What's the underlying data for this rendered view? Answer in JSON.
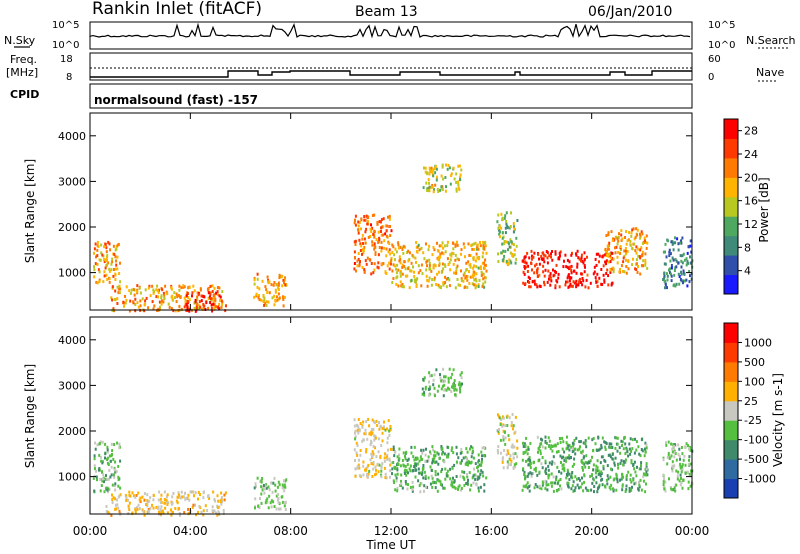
{
  "header": {
    "station": "Rankin Inlet (fitACF)",
    "beam": "Beam 13",
    "date": "06/Jan/2010"
  },
  "noise_panel": {
    "left_label": "N.Sky",
    "right_label": "N.Search",
    "tick_top": "10^5",
    "tick_bottom": "10^0",
    "right_tick_top": "10^5",
    "right_tick_bottom": "10^0"
  },
  "freq_panel": {
    "left_label_line1": "Freq.",
    "left_label_line2": "[MHz]",
    "tick_top": "18",
    "tick_bottom": "8",
    "right_label": "Nave",
    "right_tick_top": "60",
    "right_tick_bottom": "0"
  },
  "cpid_panel": {
    "left_label": "CPID",
    "program": "normalsound (fast) -157"
  },
  "chart_data": [
    {
      "type": "heatmap",
      "title": "",
      "ylabel": "Slant Range [km]",
      "xlabel": "",
      "x_ticks": [
        "00:00",
        "04:00",
        "08:00",
        "12:00",
        "16:00",
        "20:00",
        "00:00"
      ],
      "y_ticks": [
        "1000",
        "2000",
        "3000",
        "4000"
      ],
      "xlim_hours": [
        0,
        24
      ],
      "ylim_km": [
        180,
        4500
      ],
      "colorbar": {
        "label": "Power [dB]",
        "ticks": [
          "4",
          "8",
          "12",
          "16",
          "20",
          "24",
          "28"
        ],
        "range": [
          0,
          30
        ],
        "colors": [
          "#1a1aff",
          "#2f4faa",
          "#3f8a78",
          "#4fa860",
          "#b8c820",
          "#ffb400",
          "#ff7a00",
          "#ff3a00",
          "#ff0000"
        ]
      },
      "patches": [
        {
          "t0": 0.1,
          "t1": 1.2,
          "r0": 800,
          "r1": 1700,
          "value": 20
        },
        {
          "t0": 0.8,
          "t1": 5.4,
          "r0": 180,
          "r1": 750,
          "value": 20
        },
        {
          "t0": 3.8,
          "t1": 5.2,
          "r0": 180,
          "r1": 600,
          "value": 28
        },
        {
          "t0": 6.5,
          "t1": 7.8,
          "r0": 300,
          "r1": 1000,
          "value": 20
        },
        {
          "t0": 10.5,
          "t1": 12.0,
          "r0": 1000,
          "r1": 2300,
          "value": 22
        },
        {
          "t0": 12.0,
          "t1": 15.8,
          "r0": 700,
          "r1": 1700,
          "value": 18
        },
        {
          "t0": 13.2,
          "t1": 14.8,
          "r0": 2800,
          "r1": 3400,
          "value": 16
        },
        {
          "t0": 16.2,
          "t1": 17.0,
          "r0": 1200,
          "r1": 2400,
          "value": 14
        },
        {
          "t0": 17.2,
          "t1": 20.8,
          "r0": 700,
          "r1": 1500,
          "value": 28
        },
        {
          "t0": 20.5,
          "t1": 22.2,
          "r0": 1000,
          "r1": 2000,
          "value": 20
        },
        {
          "t0": 22.8,
          "t1": 24.0,
          "r0": 700,
          "r1": 1800,
          "value": 8
        }
      ]
    },
    {
      "type": "heatmap",
      "title": "",
      "ylabel": "Slant Range [km]",
      "xlabel": "Time UT",
      "x_ticks": [
        "00:00",
        "04:00",
        "08:00",
        "12:00",
        "16:00",
        "20:00",
        "00:00"
      ],
      "y_ticks": [
        "1000",
        "2000",
        "3000",
        "4000"
      ],
      "xlim_hours": [
        0,
        24
      ],
      "ylim_km": [
        180,
        4500
      ],
      "colorbar": {
        "label": "Velocity [m s-1]",
        "ticks": [
          "1000",
          "500",
          "100",
          "25",
          "-25",
          "-100",
          "-500",
          "-1000"
        ],
        "range": [
          -1000,
          1000
        ],
        "colors": [
          "#1a3fb0",
          "#2f6aa0",
          "#3f8a6a",
          "#55c040",
          "#c8c8c0",
          "#ffb000",
          "#ff7a00",
          "#ff3a00",
          "#ff0000"
        ]
      },
      "patches": [
        {
          "t0": 0.1,
          "t1": 1.2,
          "r0": 700,
          "r1": 1800,
          "value": -200
        },
        {
          "t0": 0.6,
          "t1": 5.4,
          "r0": 180,
          "r1": 700,
          "value": 150
        },
        {
          "t0": 6.5,
          "t1": 7.8,
          "r0": 300,
          "r1": 1000,
          "value": -150
        },
        {
          "t0": 10.5,
          "t1": 12.0,
          "r0": 1000,
          "r1": 2300,
          "value": 60
        },
        {
          "t0": 12.0,
          "t1": 15.8,
          "r0": 700,
          "r1": 1700,
          "value": -250
        },
        {
          "t0": 13.2,
          "t1": 14.8,
          "r0": 2800,
          "r1": 3400,
          "value": -200
        },
        {
          "t0": 16.2,
          "t1": 17.0,
          "r0": 1200,
          "r1": 2400,
          "value": 0
        },
        {
          "t0": 17.2,
          "t1": 22.2,
          "r0": 700,
          "r1": 1900,
          "value": -300
        },
        {
          "t0": 22.8,
          "t1": 24.0,
          "r0": 700,
          "r1": 1800,
          "value": -150
        }
      ]
    }
  ]
}
